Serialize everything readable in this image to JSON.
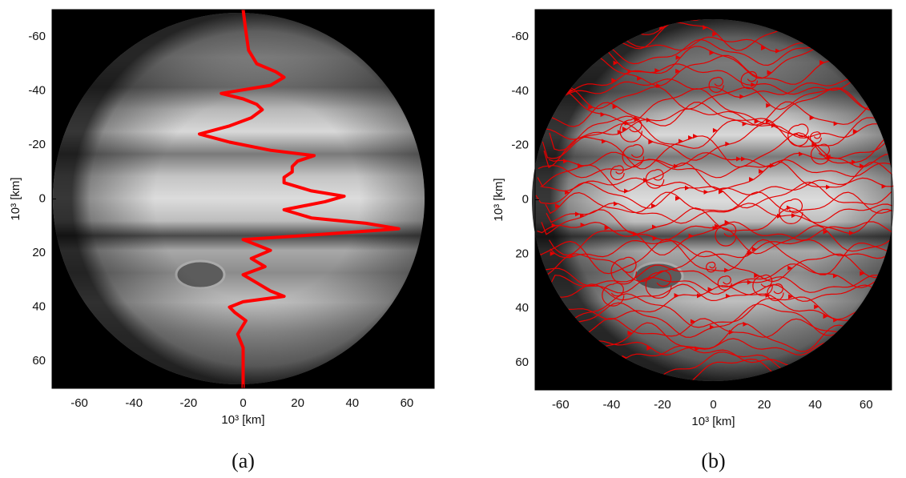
{
  "chart_data": [
    {
      "type": "line",
      "caption": "(a)",
      "xlabel": "10³ [km]",
      "ylabel": "10³ [km]",
      "xlim": [
        -70,
        70
      ],
      "ylim": [
        -70,
        70
      ],
      "y_inverted": true,
      "xticks": [
        -60,
        -40,
        -20,
        0,
        20,
        40,
        60
      ],
      "yticks": [
        -60,
        -40,
        -20,
        0,
        20,
        40,
        60
      ],
      "series": [
        {
          "color": "#ff0000",
          "x": [
            0,
            1,
            2,
            5,
            12,
            15,
            10,
            -8,
            0,
            5,
            7,
            3,
            -5,
            -16,
            -5,
            10,
            26,
            20,
            18,
            18,
            15,
            15,
            25,
            37,
            30,
            15,
            25,
            45,
            57,
            30,
            0,
            5,
            10,
            3,
            8,
            0,
            5,
            10,
            15,
            0,
            -5,
            -3,
            1,
            -2,
            0,
            0,
            0,
            0
          ],
          "values": [
            -70,
            -62,
            -55,
            -50,
            -47,
            -45,
            -42,
            -39,
            -37,
            -35,
            -33,
            -30,
            -27,
            -24,
            -21,
            -18,
            -16,
            -14,
            -12,
            -10,
            -8,
            -6,
            -3,
            -1,
            1,
            4,
            7,
            9,
            11,
            13,
            15,
            17,
            19,
            22,
            25,
            28,
            31,
            34,
            36,
            38,
            40,
            42,
            45,
            50,
            55,
            60,
            65,
            70
          ]
        }
      ]
    },
    {
      "type": "streamlines",
      "caption": "(b)",
      "xlabel": "10³ [km]",
      "ylabel": "10³ [km]",
      "xlim": [
        -70,
        70
      ],
      "ylim": [
        -70,
        70
      ],
      "y_inverted": true,
      "color": "#e60000",
      "xticks": [
        -60,
        -40,
        -20,
        0,
        20,
        40,
        60
      ],
      "yticks": [
        -60,
        -40,
        -20,
        0,
        20,
        40,
        60
      ]
    }
  ]
}
